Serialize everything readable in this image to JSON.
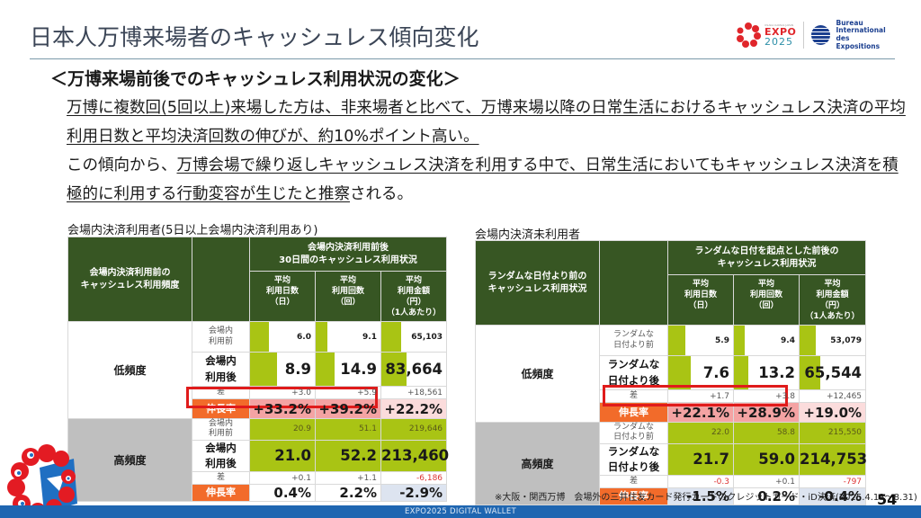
{
  "header": {
    "title": "日本人万博来場者のキャッシュレス傾向変化",
    "logos": {
      "expo_small": "OSAKA KANSAI JAPAN",
      "expo_line1": "EXPO",
      "expo_line2": "2025",
      "bie_line1": "Bureau",
      "bie_line2": "International",
      "bie_line3": "des Expositions"
    }
  },
  "subtitle": "＜万博来場前後でのキャッシュレス利用状況の変化＞",
  "body": {
    "p1": "万博に複数回(5回以上)来場した方は、非来場者と比べて、万博来場以降の日常生活におけるキャッシュレス決済の平均利用日数と平均決済回数の伸びが、約10%ポイント高い。",
    "p2_prefix": "この傾向から、",
    "p2_underlined": "万博会場で繰り返しキャッシュレス決済を利用する中で、日常生活においてもキャッシュレス決済を積極的に利用する行動変容が生じたと推察",
    "p2_suffix": "される。"
  },
  "tables": [
    {
      "caption": "会場内決済利用者(5日以上会場内決済利用あり)",
      "header_left": [
        "会場内決済利用前の",
        "キャッシュレス利用頻度"
      ],
      "header_span": [
        "会場内決済利用前後",
        "30日間のキャッシュレス利用状況"
      ],
      "columns": [
        [
          "平均",
          "利用日数",
          "（日）"
        ],
        [
          "平均",
          "利用回数",
          "（回）"
        ],
        [
          "平均",
          "利用金額",
          "（円）",
          "（1人あたり）"
        ]
      ],
      "groups": [
        {
          "name": "低頻度",
          "before_label": [
            "会場内",
            "利用前"
          ],
          "after_label": [
            "会場内",
            "利用後"
          ],
          "diff_label": "差",
          "rate_label": "伸長率",
          "before": [
            "6.0",
            "9.1",
            "65,103"
          ],
          "after": [
            "8.9",
            "14.9",
            "83,664"
          ],
          "diff": [
            "+3.0",
            "+5.9",
            "+18,561"
          ],
          "rate": [
            "+33.2%",
            "+39.2%",
            "+22.2%"
          ],
          "before_fill": [
            0.29,
            0.18,
            0.3
          ],
          "after_fill": [
            0.42,
            0.29,
            0.39
          ]
        },
        {
          "name": "高頻度",
          "before_label": [
            "会場内",
            "利用前"
          ],
          "after_label": [
            "会場内",
            "利用後"
          ],
          "diff_label": "差",
          "rate_label": "伸長率",
          "before": [
            "20.9",
            "51.1",
            "219,646"
          ],
          "after": [
            "21.0",
            "52.2",
            "213,460"
          ],
          "diff": [
            "+0.1",
            "+1.1",
            "-6,186"
          ],
          "rate": [
            "0.4%",
            "2.2%",
            "-2.9%"
          ]
        }
      ]
    },
    {
      "caption": "会場内決済未利用者",
      "header_left": [
        "ランダムな日付より前の",
        "キャッシュレス利用状況"
      ],
      "header_span": [
        "ランダムな日付を起点とした前後の",
        "キャッシュレス利用状況"
      ],
      "columns": [
        [
          "平均",
          "利用日数",
          "（日）"
        ],
        [
          "平均",
          "利用回数",
          "（回）"
        ],
        [
          "平均",
          "利用金額",
          "（円）",
          "（1人あたり）"
        ]
      ],
      "groups": [
        {
          "name": "低頻度",
          "before_label": [
            "ランダムな",
            "日付より前"
          ],
          "after_label": [
            "ランダムな",
            "日付より後"
          ],
          "diff_label": "差",
          "rate_label": "伸長率",
          "before": [
            "5.9",
            "9.4",
            "53,079"
          ],
          "after": [
            "7.6",
            "13.2",
            "65,544"
          ],
          "diff": [
            "+1.7",
            "+3.8",
            "+12,465"
          ],
          "rate": [
            "+22.1%",
            "+28.9%",
            "+19.0%"
          ],
          "before_fill": [
            0.27,
            0.16,
            0.25
          ],
          "after_fill": [
            0.35,
            0.22,
            0.31
          ]
        },
        {
          "name": "高頻度",
          "before_label": [
            "ランダムな",
            "日付より前"
          ],
          "after_label": [
            "ランダムな",
            "日付より後"
          ],
          "diff_label": "差",
          "rate_label": "伸長率",
          "before": [
            "22.0",
            "58.8",
            "215,550"
          ],
          "after": [
            "21.7",
            "59.0",
            "214,753"
          ],
          "diff": [
            "-0.3",
            "+0.1",
            "-797"
          ],
          "rate": [
            "-1.5%",
            "0.2%",
            "-0.4%"
          ]
        }
      ]
    }
  ],
  "footnote": "※大阪・関西万博　会場外の三井住友カード発行カードのクレジットカード・iD決済(2025.4.13～8.31)",
  "page_number": "54",
  "footer": "EXPO2025 DIGITAL WALLET",
  "colors": {
    "header_green": "#375623",
    "bar_green": "#a9c414",
    "rate_orange": "#f26b2a",
    "highlight_red": "#e01b1b",
    "footer_blue": "#1f66b1"
  }
}
